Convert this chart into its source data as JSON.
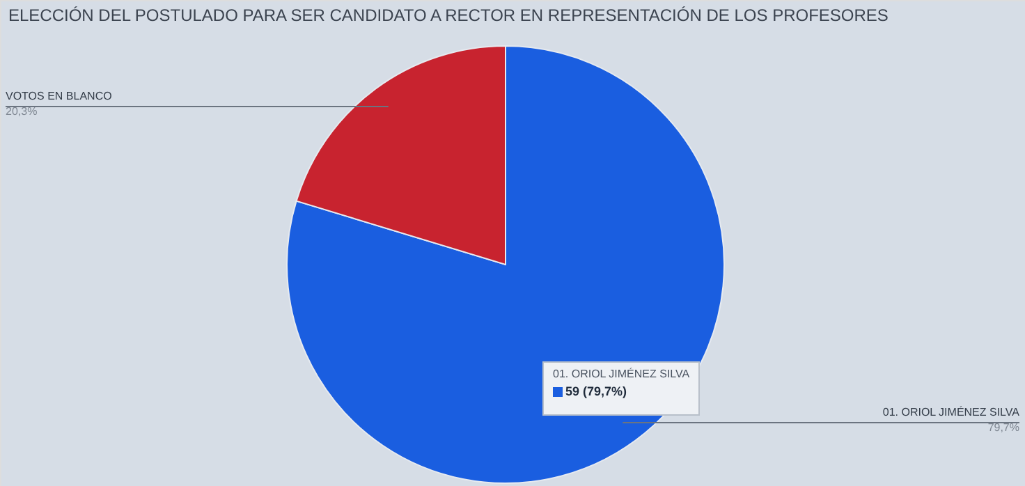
{
  "chart_data": {
    "type": "pie",
    "title": "ELECCIÓN DEL POSTULADO PARA SER CANDIDATO A RECTOR EN REPRESENTACIÓN DE LOS PROFESORES",
    "categories": [
      "01. ORIOL JIMÉNEZ SILVA",
      "VOTOS EN BLANCO"
    ],
    "values": [
      79.7,
      20.3
    ],
    "colors": [
      "#1a5ee0",
      "#c8232f"
    ],
    "value_labels": [
      "79,7%",
      "20,3%"
    ],
    "annotations": [
      "01. ORIOL JIMÉNEZ SILVA",
      "59 (79,7%)"
    ],
    "legend": false
  }
}
